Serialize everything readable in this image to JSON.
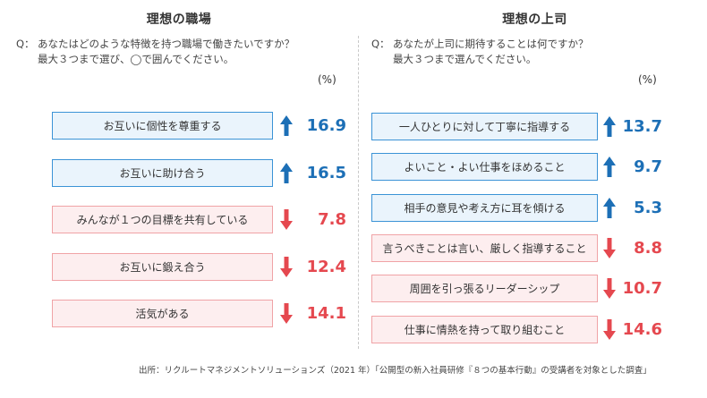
{
  "source": "出所：リクルートマネジメントソリューションズ（2021 年）「公開型の新入社員研修『８つの基本行動』の受講者を対象とした調査」",
  "colors": {
    "up": "#1c6fb6",
    "down": "#e5484f",
    "up_fill": "#eaf4fc",
    "down_fill": "#fdeeef"
  },
  "chart_data": [
    {
      "type": "table",
      "title": "理想の職場",
      "question": {
        "prefix": "Q：",
        "line1": "あなたはどのような特徴を持つ職場で働きたいですか？",
        "line2": "最大３つまで選び、◯で囲んでください。"
      },
      "unit": "(%)",
      "rows": [
        {
          "label": "お互いに個性を尊重する",
          "value": 16.9,
          "direction": "up"
        },
        {
          "label": "お互いに助け合う",
          "value": 16.5,
          "direction": "up"
        },
        {
          "label": "みんなが１つの目標を共有している",
          "value": 7.8,
          "direction": "down"
        },
        {
          "label": "お互いに鍛え合う",
          "value": 12.4,
          "direction": "down"
        },
        {
          "label": "活気がある",
          "value": 14.1,
          "direction": "down"
        }
      ]
    },
    {
      "type": "table",
      "title": "理想の上司",
      "question": {
        "prefix": "Q：",
        "line1": "あなたが上司に期待することは何ですか？",
        "line2": "最大３つまで選んでください。"
      },
      "unit": "(%)",
      "rows": [
        {
          "label": "一人ひとりに対して丁寧に指導する",
          "value": 13.7,
          "direction": "up"
        },
        {
          "label": "よいこと・よい仕事をほめること",
          "value": 9.7,
          "direction": "up"
        },
        {
          "label": "相手の意見や考え方に耳を傾ける",
          "value": 5.3,
          "direction": "up"
        },
        {
          "label": "言うべきことは言い、厳しく指導すること",
          "value": 8.8,
          "direction": "down"
        },
        {
          "label": "周囲を引っ張るリーダーシップ",
          "value": 10.7,
          "direction": "down"
        },
        {
          "label": "仕事に情熱を持って取り組むこと",
          "value": 14.6,
          "direction": "down"
        }
      ]
    }
  ]
}
